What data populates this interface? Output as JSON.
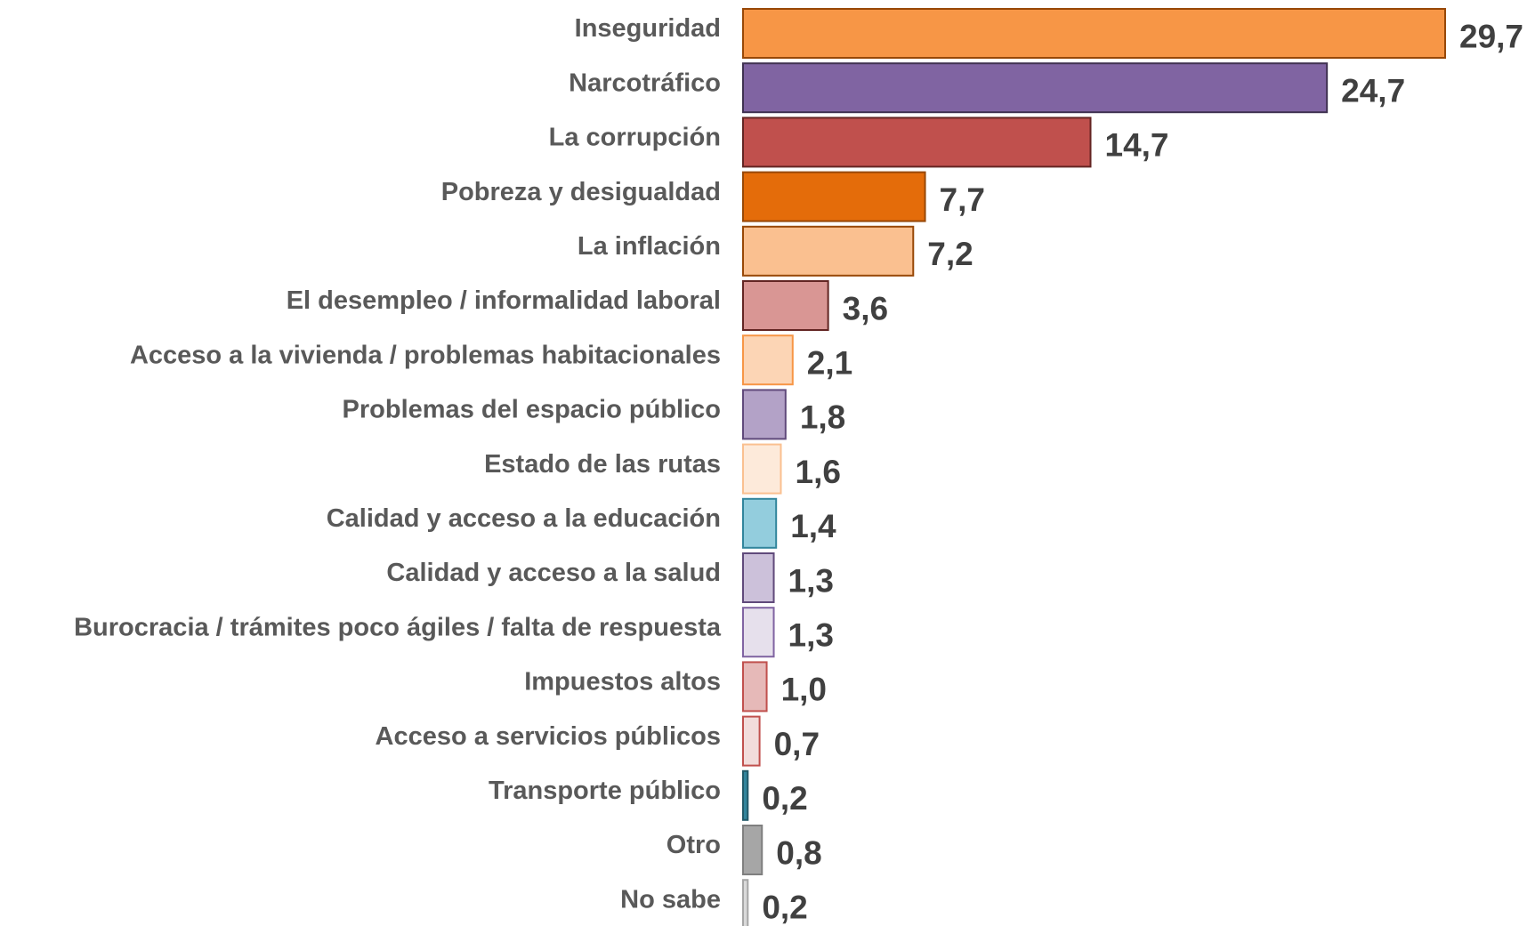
{
  "chart_data": {
    "type": "barh",
    "categories": [
      "Inseguridad",
      "Narcotráfico",
      "La corrupción",
      "Pobreza y desigualdad",
      "La inflación",
      "El desempleo / informalidad laboral",
      "Acceso a la vivienda / problemas habitacionales",
      "Problemas del espacio público",
      "Estado de las rutas",
      "Calidad y acceso a la educación",
      "Calidad y acceso a la salud",
      "Burocracia / trámites poco ágiles / falta de respuesta",
      "Impuestos altos",
      "Acceso a servicios públicos",
      "Transporte público",
      "Otro",
      "No sabe"
    ],
    "values": [
      29.7,
      24.7,
      14.7,
      7.7,
      7.2,
      3.6,
      2.1,
      1.8,
      1.6,
      1.4,
      1.3,
      1.3,
      1.0,
      0.7,
      0.2,
      0.8,
      0.2
    ],
    "value_labels": [
      "29,7",
      "24,7",
      "14,7",
      "7,7",
      "7,2",
      "3,6",
      "2,1",
      "1,8",
      "1,6",
      "1,4",
      "1,3",
      "1,3",
      "1,0",
      "0,7",
      "0,2",
      "0,8",
      "0,2"
    ],
    "colors": [
      "#F79646",
      "#8064A2",
      "#C0504D",
      "#E46C0A",
      "#FAC090",
      "#D99694",
      "#FCD5B5",
      "#B3A2C7",
      "#FDEADA",
      "#93CDDD",
      "#CCC1DA",
      "#E6E0EC",
      "#E6B9B8",
      "#F2DCDB",
      "#31859C",
      "#A6A6A6",
      "#D9D9D9"
    ],
    "edgecolors": [
      "#984807",
      "#3F3151",
      "#632523",
      "#984807",
      "#984807",
      "#632523",
      "#F79646",
      "#604A7B",
      "#FAC090",
      "#31859C",
      "#604A7B",
      "#8064A2",
      "#C0504D",
      "#C0504D",
      "#215968",
      "#7F7F7F",
      "#A6A6A6"
    ]
  }
}
